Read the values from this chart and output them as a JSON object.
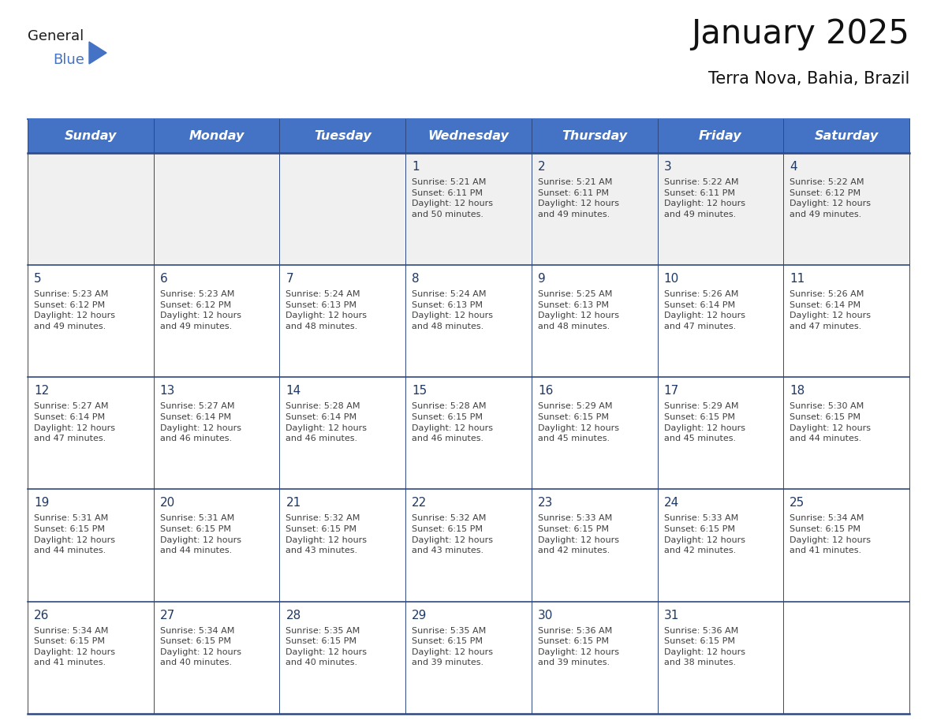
{
  "title": "January 2025",
  "subtitle": "Terra Nova, Bahia, Brazil",
  "header_color": "#4472C4",
  "header_text_color": "#FFFFFF",
  "cell_bg_white": "#FFFFFF",
  "cell_bg_gray": "#F0F0F0",
  "day_number_color": "#1F3864",
  "text_color": "#404040",
  "border_color_header": "#4472C4",
  "border_color_row": "#2E4882",
  "weekdays": [
    "Sunday",
    "Monday",
    "Tuesday",
    "Wednesday",
    "Thursday",
    "Friday",
    "Saturday"
  ],
  "calendar_data": [
    [
      "",
      "",
      "",
      "1\nSunrise: 5:21 AM\nSunset: 6:11 PM\nDaylight: 12 hours\nand 50 minutes.",
      "2\nSunrise: 5:21 AM\nSunset: 6:11 PM\nDaylight: 12 hours\nand 49 minutes.",
      "3\nSunrise: 5:22 AM\nSunset: 6:11 PM\nDaylight: 12 hours\nand 49 minutes.",
      "4\nSunrise: 5:22 AM\nSunset: 6:12 PM\nDaylight: 12 hours\nand 49 minutes."
    ],
    [
      "5\nSunrise: 5:23 AM\nSunset: 6:12 PM\nDaylight: 12 hours\nand 49 minutes.",
      "6\nSunrise: 5:23 AM\nSunset: 6:12 PM\nDaylight: 12 hours\nand 49 minutes.",
      "7\nSunrise: 5:24 AM\nSunset: 6:13 PM\nDaylight: 12 hours\nand 48 minutes.",
      "8\nSunrise: 5:24 AM\nSunset: 6:13 PM\nDaylight: 12 hours\nand 48 minutes.",
      "9\nSunrise: 5:25 AM\nSunset: 6:13 PM\nDaylight: 12 hours\nand 48 minutes.",
      "10\nSunrise: 5:26 AM\nSunset: 6:14 PM\nDaylight: 12 hours\nand 47 minutes.",
      "11\nSunrise: 5:26 AM\nSunset: 6:14 PM\nDaylight: 12 hours\nand 47 minutes."
    ],
    [
      "12\nSunrise: 5:27 AM\nSunset: 6:14 PM\nDaylight: 12 hours\nand 47 minutes.",
      "13\nSunrise: 5:27 AM\nSunset: 6:14 PM\nDaylight: 12 hours\nand 46 minutes.",
      "14\nSunrise: 5:28 AM\nSunset: 6:14 PM\nDaylight: 12 hours\nand 46 minutes.",
      "15\nSunrise: 5:28 AM\nSunset: 6:15 PM\nDaylight: 12 hours\nand 46 minutes.",
      "16\nSunrise: 5:29 AM\nSunset: 6:15 PM\nDaylight: 12 hours\nand 45 minutes.",
      "17\nSunrise: 5:29 AM\nSunset: 6:15 PM\nDaylight: 12 hours\nand 45 minutes.",
      "18\nSunrise: 5:30 AM\nSunset: 6:15 PM\nDaylight: 12 hours\nand 44 minutes."
    ],
    [
      "19\nSunrise: 5:31 AM\nSunset: 6:15 PM\nDaylight: 12 hours\nand 44 minutes.",
      "20\nSunrise: 5:31 AM\nSunset: 6:15 PM\nDaylight: 12 hours\nand 44 minutes.",
      "21\nSunrise: 5:32 AM\nSunset: 6:15 PM\nDaylight: 12 hours\nand 43 minutes.",
      "22\nSunrise: 5:32 AM\nSunset: 6:15 PM\nDaylight: 12 hours\nand 43 minutes.",
      "23\nSunrise: 5:33 AM\nSunset: 6:15 PM\nDaylight: 12 hours\nand 42 minutes.",
      "24\nSunrise: 5:33 AM\nSunset: 6:15 PM\nDaylight: 12 hours\nand 42 minutes.",
      "25\nSunrise: 5:34 AM\nSunset: 6:15 PM\nDaylight: 12 hours\nand 41 minutes."
    ],
    [
      "26\nSunrise: 5:34 AM\nSunset: 6:15 PM\nDaylight: 12 hours\nand 41 minutes.",
      "27\nSunrise: 5:34 AM\nSunset: 6:15 PM\nDaylight: 12 hours\nand 40 minutes.",
      "28\nSunrise: 5:35 AM\nSunset: 6:15 PM\nDaylight: 12 hours\nand 40 minutes.",
      "29\nSunrise: 5:35 AM\nSunset: 6:15 PM\nDaylight: 12 hours\nand 39 minutes.",
      "30\nSunrise: 5:36 AM\nSunset: 6:15 PM\nDaylight: 12 hours\nand 39 minutes.",
      "31\nSunrise: 5:36 AM\nSunset: 6:15 PM\nDaylight: 12 hours\nand 38 minutes.",
      ""
    ]
  ],
  "logo_color_general": "#1a1a1a",
  "logo_color_blue": "#4472C4",
  "logo_triangle_color": "#4472C4",
  "fig_width": 11.88,
  "fig_height": 9.18,
  "dpi": 100
}
